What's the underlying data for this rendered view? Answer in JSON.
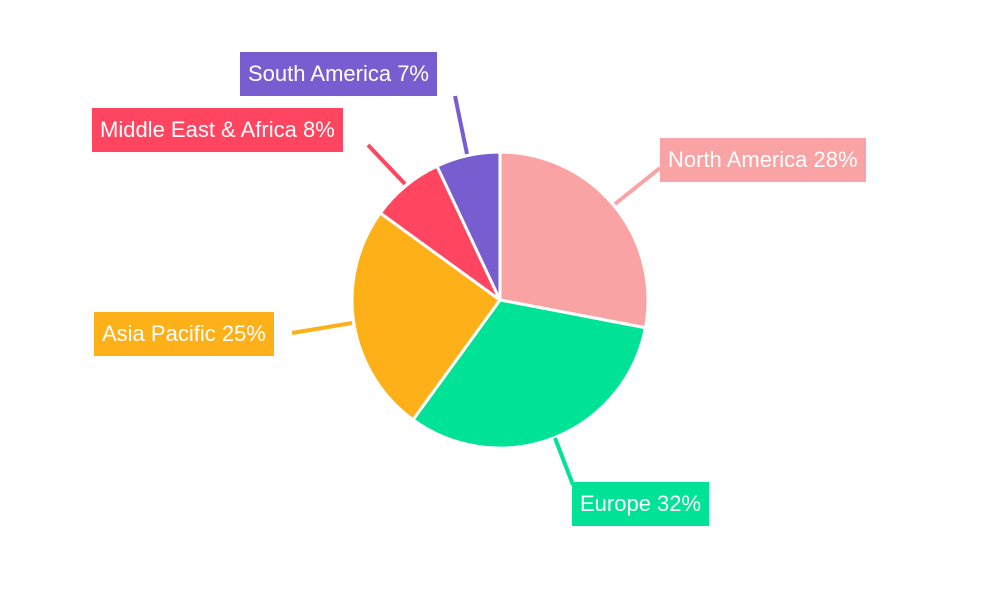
{
  "chart_data": {
    "type": "pie",
    "categories": [
      "North America",
      "Europe",
      "Asia Pacific",
      "Middle East & Africa",
      "South America"
    ],
    "values": [
      28,
      32,
      25,
      8,
      7
    ],
    "labels": [
      "North America 28%",
      "Europe 32%",
      "Asia Pacific 25%",
      "Middle East & Africa 8%",
      "South America 7%"
    ],
    "colors": [
      "#F9A3A4",
      "#00E396",
      "#FEB019",
      "#FF4560",
      "#775DD0"
    ],
    "start_angle": "top, clockwise",
    "legend": "none"
  }
}
